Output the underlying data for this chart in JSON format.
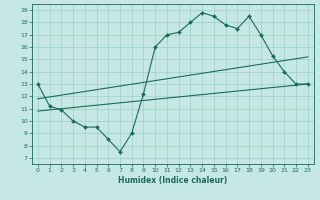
{
  "xlabel": "Humidex (Indice chaleur)",
  "bg_color": "#c5e8e5",
  "line_color": "#1a6b5a",
  "grid_color": "#9ecece",
  "xlim": [
    -0.5,
    23.5
  ],
  "ylim": [
    6.5,
    19.5
  ],
  "xticks": [
    0,
    1,
    2,
    3,
    4,
    5,
    6,
    7,
    8,
    9,
    10,
    11,
    12,
    13,
    14,
    15,
    16,
    17,
    18,
    19,
    20,
    21,
    22,
    23
  ],
  "yticks": [
    7,
    8,
    9,
    10,
    11,
    12,
    13,
    14,
    15,
    16,
    17,
    18,
    19
  ],
  "line1_x": [
    0,
    1,
    2,
    3,
    4,
    5,
    6,
    7,
    8,
    9,
    10,
    11,
    12,
    13,
    14,
    15,
    16,
    17,
    18,
    19,
    20,
    21,
    22,
    23
  ],
  "line1_y": [
    13.0,
    11.2,
    10.9,
    10.0,
    9.5,
    9.5,
    8.5,
    7.5,
    9.0,
    12.2,
    16.0,
    17.0,
    17.2,
    18.0,
    18.8,
    18.5,
    17.8,
    17.5,
    18.5,
    17.0,
    15.3,
    14.0,
    13.0,
    13.0
  ],
  "line2_x": [
    0,
    23
  ],
  "line2_y": [
    11.8,
    15.2
  ],
  "line3_x": [
    0,
    23
  ],
  "line3_y": [
    10.8,
    13.0
  ]
}
